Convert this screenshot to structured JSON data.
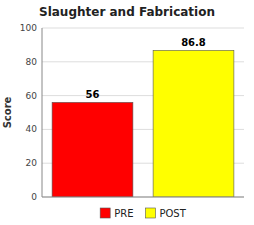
{
  "chart_data": {
    "type": "bar",
    "title": "Slaughter and Fabrication",
    "categories": [
      "PRE",
      "POST"
    ],
    "values": [
      56,
      86.8
    ],
    "colors": [
      "#ff0000",
      "#ffff00"
    ],
    "ylabel": "Score",
    "ylim": [
      0,
      100
    ],
    "yticks": [
      0,
      20,
      40,
      60,
      80,
      100
    ],
    "grid": true,
    "legend": "bottom",
    "data_labels": true,
    "tick_labels": "y"
  }
}
